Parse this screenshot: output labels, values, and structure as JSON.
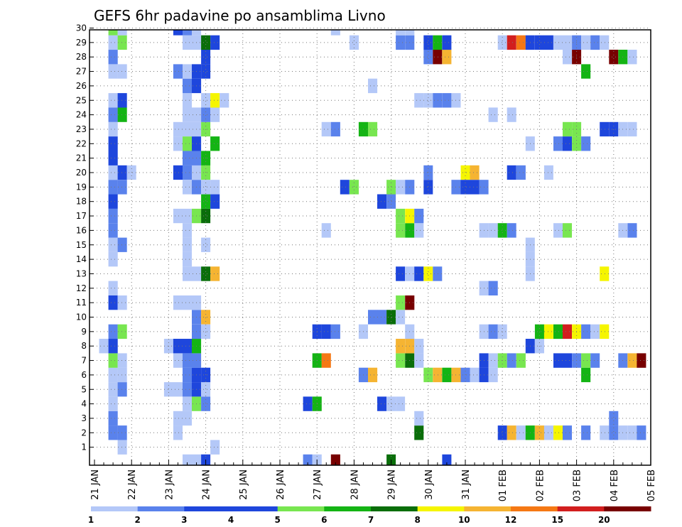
{
  "chart_data": {
    "type": "heatmap",
    "title": "GEFS 6hr padavine po ansamblima Livno",
    "x_labels": [
      "21 JAN",
      "22 JAN",
      "23 JAN",
      "24 JAN",
      "25 JAN",
      "26 JAN",
      "27 JAN",
      "28 JAN",
      "29 JAN",
      "30 JAN",
      "31 JAN",
      "01 FEB",
      "02 FEB",
      "03 FEB",
      "04 FEB",
      "05 FEB"
    ],
    "y_range": [
      0,
      30
    ],
    "y_ticks": [
      "1",
      "2",
      "3",
      "4",
      "5",
      "6",
      "7",
      "8",
      "9",
      "10",
      "11",
      "12",
      "13",
      "14",
      "15",
      "16",
      "17",
      "18",
      "19",
      "20",
      "21",
      "22",
      "23",
      "24",
      "25",
      "26",
      "27",
      "28",
      "29",
      "30"
    ],
    "grid": true,
    "legend": {
      "placement": "bottom",
      "labels": [
        "1",
        "2",
        "3",
        "4",
        "5",
        "6",
        "7",
        "8",
        "10",
        "12",
        "15",
        "20"
      ],
      "colors": [
        "#b4c8f8",
        "#5a82ec",
        "#1e46dc",
        "#1e46dc",
        "#78e650",
        "#14b414",
        "#0a6e0a",
        "#f5f500",
        "#f5b432",
        "#f57814",
        "#d21e1e",
        "#780000"
      ]
    },
    "colors": {
      "1": "#b4c8f8",
      "2": "#5a82ec",
      "3": "#1e46dc",
      "5": "#78e650",
      "6": "#14b414",
      "7": "#0a6e0a",
      "8": "#f5f500",
      "10": "#f5b432",
      "12": "#f57814",
      "15": "#d21e1e",
      "20": "#780000"
    },
    "cells": {
      "30": [
        [
          2,
          5
        ],
        [
          3,
          1
        ],
        [
          9,
          3
        ],
        [
          10,
          2
        ],
        [
          11,
          1
        ],
        [
          26,
          1
        ],
        [
          33,
          1
        ],
        [
          34,
          1
        ]
      ],
      "29": [
        [
          2,
          1
        ],
        [
          3,
          5
        ],
        [
          10,
          1
        ],
        [
          11,
          1
        ],
        [
          12,
          7
        ],
        [
          13,
          3
        ],
        [
          28,
          1
        ],
        [
          33,
          2
        ],
        [
          34,
          2
        ],
        [
          36,
          3
        ],
        [
          37,
          6
        ],
        [
          38,
          3
        ],
        [
          44,
          1
        ],
        [
          45,
          15
        ],
        [
          46,
          12
        ],
        [
          47,
          3
        ],
        [
          48,
          3
        ],
        [
          49,
          3
        ],
        [
          50,
          1
        ],
        [
          51,
          1
        ],
        [
          52,
          2
        ],
        [
          53,
          1
        ],
        [
          54,
          2
        ],
        [
          55,
          1
        ]
      ],
      "28": [
        [
          2,
          2
        ],
        [
          12,
          3
        ],
        [
          36,
          2
        ],
        [
          37,
          20
        ],
        [
          38,
          10
        ],
        [
          51,
          1
        ],
        [
          52,
          20
        ],
        [
          56,
          20
        ],
        [
          57,
          6
        ],
        [
          58,
          1
        ]
      ],
      "27": [
        [
          2,
          1
        ],
        [
          3,
          1
        ],
        [
          9,
          2
        ],
        [
          10,
          1
        ],
        [
          11,
          3
        ],
        [
          12,
          3
        ],
        [
          53,
          6
        ]
      ],
      "26": [
        [
          10,
          2
        ],
        [
          11,
          3
        ],
        [
          30,
          1
        ]
      ],
      "25": [
        [
          2,
          1
        ],
        [
          3,
          3
        ],
        [
          10,
          1
        ],
        [
          12,
          1
        ],
        [
          13,
          8
        ],
        [
          14,
          1
        ],
        [
          35,
          1
        ],
        [
          36,
          1
        ],
        [
          37,
          2
        ],
        [
          38,
          2
        ],
        [
          39,
          1
        ]
      ],
      "24": [
        [
          2,
          2
        ],
        [
          3,
          6
        ],
        [
          10,
          1
        ],
        [
          11,
          1
        ],
        [
          12,
          2
        ],
        [
          13,
          1
        ],
        [
          43,
          1
        ],
        [
          45,
          1
        ]
      ],
      "23": [
        [
          2,
          1
        ],
        [
          9,
          1
        ],
        [
          10,
          1
        ],
        [
          11,
          1
        ],
        [
          12,
          5
        ],
        [
          25,
          1
        ],
        [
          26,
          2
        ],
        [
          29,
          6
        ],
        [
          30,
          5
        ],
        [
          51,
          5
        ],
        [
          52,
          5
        ],
        [
          55,
          3
        ],
        [
          56,
          3
        ],
        [
          57,
          1
        ],
        [
          58,
          1
        ]
      ],
      "22": [
        [
          2,
          3
        ],
        [
          9,
          1
        ],
        [
          10,
          5
        ],
        [
          11,
          3
        ],
        [
          13,
          6
        ],
        [
          47,
          1
        ],
        [
          50,
          2
        ],
        [
          51,
          3
        ],
        [
          52,
          5
        ],
        [
          53,
          2
        ]
      ],
      "21": [
        [
          2,
          3
        ],
        [
          10,
          2
        ],
        [
          11,
          2
        ],
        [
          12,
          6
        ]
      ],
      "20": [
        [
          2,
          1
        ],
        [
          3,
          3
        ],
        [
          4,
          1
        ],
        [
          9,
          3
        ],
        [
          10,
          2
        ],
        [
          11,
          1
        ],
        [
          12,
          5
        ],
        [
          36,
          2
        ],
        [
          40,
          8
        ],
        [
          41,
          10
        ],
        [
          45,
          3
        ],
        [
          46,
          2
        ],
        [
          49,
          1
        ]
      ],
      "19": [
        [
          2,
          2
        ],
        [
          3,
          2
        ],
        [
          10,
          1
        ],
        [
          11,
          2
        ],
        [
          12,
          1
        ],
        [
          13,
          1
        ],
        [
          27,
          3
        ],
        [
          28,
          5
        ],
        [
          32,
          5
        ],
        [
          33,
          1
        ],
        [
          34,
          2
        ],
        [
          36,
          3
        ],
        [
          39,
          2
        ],
        [
          40,
          3
        ],
        [
          41,
          3
        ],
        [
          42,
          2
        ]
      ],
      "18": [
        [
          2,
          3
        ],
        [
          12,
          6
        ],
        [
          13,
          3
        ],
        [
          31,
          3
        ],
        [
          32,
          2
        ]
      ],
      "17": [
        [
          2,
          2
        ],
        [
          9,
          1
        ],
        [
          10,
          1
        ],
        [
          11,
          5
        ],
        [
          12,
          7
        ],
        [
          33,
          5
        ],
        [
          34,
          8
        ],
        [
          35,
          2
        ]
      ],
      "16": [
        [
          2,
          2
        ],
        [
          10,
          1
        ],
        [
          25,
          1
        ],
        [
          33,
          5
        ],
        [
          34,
          6
        ],
        [
          35,
          1
        ],
        [
          42,
          1
        ],
        [
          43,
          1
        ],
        [
          44,
          6
        ],
        [
          45,
          2
        ],
        [
          50,
          1
        ],
        [
          51,
          5
        ],
        [
          57,
          1
        ],
        [
          58,
          2
        ]
      ],
      "15": [
        [
          2,
          1
        ],
        [
          3,
          2
        ],
        [
          10,
          1
        ],
        [
          12,
          1
        ],
        [
          47,
          1
        ]
      ],
      "14": [
        [
          2,
          1
        ],
        [
          10,
          1
        ],
        [
          47,
          1
        ]
      ],
      "13": [
        [
          10,
          1
        ],
        [
          11,
          1
        ],
        [
          12,
          7
        ],
        [
          13,
          10
        ],
        [
          33,
          3
        ],
        [
          34,
          1
        ],
        [
          35,
          3
        ],
        [
          36,
          8
        ],
        [
          37,
          2
        ],
        [
          47,
          1
        ],
        [
          55,
          8
        ]
      ],
      "12": [
        [
          2,
          1
        ],
        [
          42,
          1
        ],
        [
          43,
          2
        ]
      ],
      "11": [
        [
          2,
          3
        ],
        [
          3,
          1
        ],
        [
          9,
          1
        ],
        [
          10,
          1
        ],
        [
          11,
          1
        ],
        [
          33,
          5
        ],
        [
          34,
          20
        ]
      ],
      "10": [
        [
          11,
          2
        ],
        [
          12,
          10
        ],
        [
          30,
          2
        ],
        [
          31,
          2
        ],
        [
          32,
          7
        ],
        [
          33,
          1
        ]
      ],
      "9": [
        [
          2,
          2
        ],
        [
          3,
          5
        ],
        [
          11,
          2
        ],
        [
          12,
          1
        ],
        [
          24,
          3
        ],
        [
          25,
          3
        ],
        [
          26,
          2
        ],
        [
          29,
          1
        ],
        [
          34,
          1
        ],
        [
          42,
          1
        ],
        [
          43,
          2
        ],
        [
          44,
          1
        ],
        [
          48,
          6
        ],
        [
          49,
          8
        ],
        [
          50,
          6
        ],
        [
          51,
          15
        ],
        [
          52,
          8
        ],
        [
          53,
          2
        ],
        [
          54,
          1
        ],
        [
          55,
          8
        ]
      ],
      "8": [
        [
          1,
          1
        ],
        [
          2,
          3
        ],
        [
          8,
          1
        ],
        [
          9,
          3
        ],
        [
          10,
          3
        ],
        [
          11,
          6
        ],
        [
          33,
          10
        ],
        [
          34,
          10
        ],
        [
          35,
          1
        ],
        [
          47,
          3
        ],
        [
          48,
          1
        ]
      ],
      "7": [
        [
          2,
          5
        ],
        [
          3,
          1
        ],
        [
          9,
          1
        ],
        [
          10,
          2
        ],
        [
          11,
          2
        ],
        [
          24,
          6
        ],
        [
          25,
          12
        ],
        [
          33,
          5
        ],
        [
          34,
          7
        ],
        [
          35,
          1
        ],
        [
          42,
          3
        ],
        [
          43,
          1
        ],
        [
          44,
          5
        ],
        [
          45,
          2
        ],
        [
          46,
          5
        ],
        [
          50,
          3
        ],
        [
          51,
          3
        ],
        [
          52,
          2
        ],
        [
          53,
          5
        ],
        [
          54,
          2
        ],
        [
          57,
          2
        ],
        [
          58,
          10
        ],
        [
          59,
          20
        ]
      ],
      "6": [
        [
          2,
          1
        ],
        [
          3,
          1
        ],
        [
          10,
          2
        ],
        [
          11,
          3
        ],
        [
          12,
          3
        ],
        [
          29,
          2
        ],
        [
          30,
          10
        ],
        [
          36,
          5
        ],
        [
          37,
          10
        ],
        [
          38,
          6
        ],
        [
          39,
          10
        ],
        [
          40,
          2
        ],
        [
          41,
          1
        ],
        [
          42,
          3
        ],
        [
          43,
          1
        ],
        [
          53,
          6
        ]
      ],
      "5": [
        [
          2,
          1
        ],
        [
          3,
          2
        ],
        [
          8,
          1
        ],
        [
          9,
          1
        ],
        [
          10,
          2
        ],
        [
          11,
          3
        ],
        [
          12,
          1
        ]
      ],
      "4": [
        [
          2,
          1
        ],
        [
          10,
          1
        ],
        [
          11,
          5
        ],
        [
          12,
          2
        ],
        [
          23,
          3
        ],
        [
          24,
          6
        ],
        [
          31,
          3
        ],
        [
          32,
          1
        ],
        [
          33,
          1
        ]
      ],
      "3": [
        [
          2,
          2
        ],
        [
          9,
          1
        ],
        [
          10,
          1
        ],
        [
          35,
          1
        ],
        [
          56,
          2
        ]
      ],
      "2": [
        [
          2,
          2
        ],
        [
          3,
          2
        ],
        [
          9,
          1
        ],
        [
          35,
          7
        ],
        [
          44,
          3
        ],
        [
          45,
          10
        ],
        [
          46,
          1
        ],
        [
          47,
          6
        ],
        [
          48,
          10
        ],
        [
          49,
          1
        ],
        [
          50,
          8
        ],
        [
          51,
          2
        ],
        [
          53,
          2
        ],
        [
          55,
          1
        ],
        [
          56,
          2
        ],
        [
          57,
          1
        ],
        [
          58,
          1
        ],
        [
          59,
          2
        ]
      ],
      "1": [
        [
          3,
          1
        ],
        [
          13,
          1
        ]
      ],
      "0": [
        [
          10,
          1
        ],
        [
          11,
          1
        ],
        [
          12,
          3
        ],
        [
          23,
          2
        ],
        [
          24,
          1
        ],
        [
          26,
          20
        ],
        [
          32,
          7
        ],
        [
          38,
          3
        ]
      ]
    }
  }
}
